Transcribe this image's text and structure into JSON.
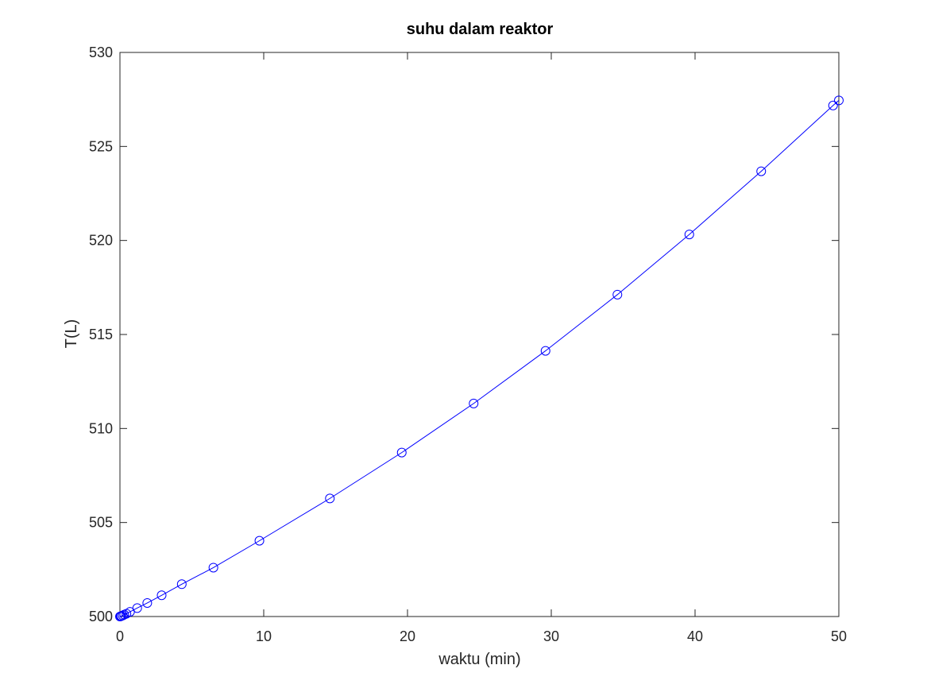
{
  "chart_data": {
    "type": "line",
    "title": "suhu dalam reaktor",
    "xlabel": "waktu (min)",
    "ylabel": "T(L)",
    "xlim": [
      0,
      50
    ],
    "ylim": [
      500,
      530
    ],
    "xticks": [
      0,
      10,
      20,
      30,
      40,
      50
    ],
    "yticks": [
      500,
      505,
      510,
      515,
      520,
      525,
      530
    ],
    "grid": false,
    "marker": "circle",
    "line_color": "#0000ff",
    "series": [
      {
        "x": [
          0,
          0.05,
          0.1,
          0.2,
          0.3,
          0.45,
          0.7,
          1.2,
          1.9,
          2.9,
          4.3,
          6.5,
          9.7,
          14.6,
          19.6,
          24.6,
          29.6,
          34.6,
          39.6,
          44.6,
          49.6,
          50
        ],
        "y": [
          500.0,
          500.01,
          500.03,
          500.06,
          500.1,
          500.15,
          500.25,
          500.45,
          500.72,
          501.13,
          501.72,
          502.6,
          504.03,
          506.28,
          508.72,
          511.33,
          514.13,
          517.12,
          520.32,
          523.68,
          527.18,
          527.45
        ]
      }
    ]
  }
}
